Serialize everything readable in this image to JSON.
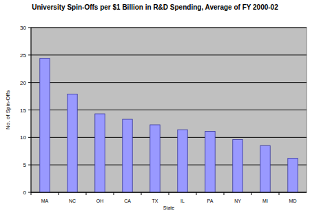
{
  "chart_data": {
    "type": "bar",
    "title": "University Spin-Offs per $1 Billion in R&D Spending, Average of FY 2000-02",
    "x_label": "State",
    "y_label": "No. of Spin-Offs",
    "categories": [
      "MA",
      "NC",
      "OH",
      "CA",
      "TX",
      "IL",
      "PA",
      "NY",
      "MI",
      "MD"
    ],
    "values": [
      24.4,
      17.9,
      14.3,
      13.3,
      12.3,
      11.4,
      11.1,
      9.6,
      8.5,
      6.2
    ],
    "color": "#9999ff",
    "ylim": [
      0,
      30
    ],
    "yticks": [
      0,
      5,
      10,
      15,
      20,
      25,
      30
    ],
    "grid": true
  }
}
